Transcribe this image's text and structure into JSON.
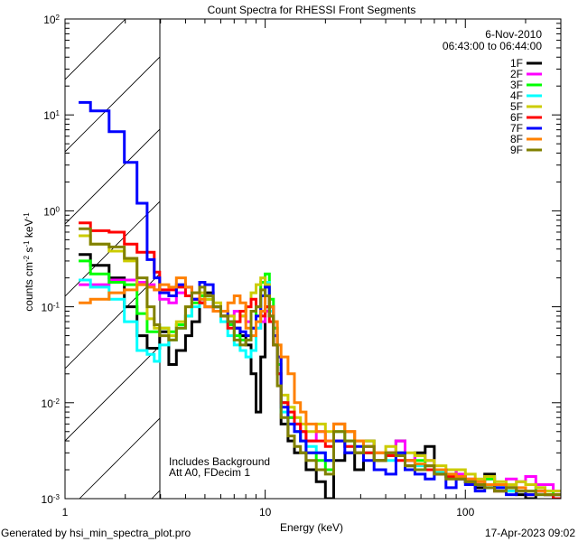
{
  "chart_data": {
    "type": "line",
    "title": "Count Spectra for RHESSI Front Segments",
    "xlabel": "Energy (keV)",
    "ylabel": "counts cm-2 s-1 keV-1",
    "xscale": "log",
    "yscale": "log",
    "xlim": [
      1,
      300
    ],
    "ylim": [
      0.001,
      100
    ],
    "x_tick_labels": [
      "1",
      "10",
      "100"
    ],
    "x_ticks": [
      1,
      10,
      100
    ],
    "y_ticks": [
      2,
      1,
      0,
      -1,
      -2,
      -3
    ],
    "grid": false,
    "legend_position": "top-right",
    "date_label": "6-Nov-2010",
    "time_label": "06:43:00 to 06:44:00",
    "annotations": [
      "Includes Background",
      "Att A0, FDecim 1"
    ],
    "hatched_region_keV": [
      1,
      3
    ],
    "footer_left": "Generated by hsi_min_spectra_plot.pro",
    "footer_right": "17-Apr-2023 09:02",
    "energy_bin_edges": [
      1.17,
      1.34,
      1.66,
      1.98,
      2.29,
      2.57,
      2.79,
      2.97,
      3.3,
      3.6,
      4.0,
      4.3,
      4.7,
      5.0,
      5.5,
      6.0,
      6.5,
      7.0,
      7.5,
      8.0,
      8.5,
      9.0,
      9.5,
      10,
      10.5,
      11,
      11.5,
      12,
      13,
      14,
      15,
      16,
      18,
      20,
      22,
      25,
      28,
      31,
      35,
      40,
      45,
      50,
      56,
      63,
      70,
      80,
      90,
      100,
      112,
      125,
      140,
      160,
      180,
      200,
      225,
      250,
      275,
      300
    ],
    "series": [
      {
        "name": "1F",
        "color": "#000000",
        "values": [
          0.35,
          0.27,
          0.2,
          0.1,
          0.05,
          0.037,
          0.037,
          0.055,
          0.025,
          0.035,
          0.05,
          0.07,
          0.11,
          0.14,
          0.1,
          0.08,
          0.07,
          0.06,
          0.05,
          0.04,
          0.02,
          0.008,
          0.03,
          0.1,
          0.08,
          0.04,
          0.02,
          0.006,
          0.004,
          0.003,
          0.003,
          0.002,
          0.0015,
          0.001,
          0.0025,
          0.003,
          0.002,
          0.004,
          0.0025,
          0.003,
          0.004,
          0.0025,
          0.003,
          0.0035,
          0.0018,
          0.002,
          0.0017,
          0.0015,
          0.0013,
          0.0018,
          0.0012,
          0.0012,
          0.0011,
          0.001,
          0.0012,
          0.0011,
          0.001
        ]
      },
      {
        "name": "2F",
        "color": "#ff00ff",
        "values": [
          0.17,
          0.17,
          0.19,
          0.19,
          0.18,
          0.17,
          0.15,
          0.12,
          0.11,
          0.14,
          0.13,
          0.12,
          0.13,
          0.1,
          0.09,
          0.08,
          0.08,
          0.09,
          0.08,
          0.07,
          0.06,
          0.06,
          0.07,
          0.09,
          0.1,
          0.06,
          0.03,
          0.01,
          0.007,
          0.006,
          0.005,
          0.004,
          0.005,
          0.004,
          0.006,
          0.005,
          0.004,
          0.0035,
          0.003,
          0.003,
          0.004,
          0.0025,
          0.0028,
          0.0025,
          0.002,
          0.002,
          0.0018,
          0.0016,
          0.0015,
          0.0016,
          0.0014,
          0.0016,
          0.0015,
          0.0017,
          0.0014,
          0.0014,
          0.0012
        ]
      },
      {
        "name": "3F",
        "color": "#00ff00",
        "values": [
          0.3,
          0.22,
          0.18,
          0.17,
          0.085,
          0.055,
          0.055,
          0.06,
          0.055,
          0.065,
          0.08,
          0.11,
          0.13,
          0.12,
          0.1,
          0.08,
          0.065,
          0.05,
          0.045,
          0.045,
          0.06,
          0.1,
          0.18,
          0.22,
          0.12,
          0.06,
          0.025,
          0.01,
          0.007,
          0.005,
          0.004,
          0.003,
          0.0025,
          0.002,
          0.005,
          0.004,
          0.003,
          0.003,
          0.0025,
          0.0028,
          0.003,
          0.0022,
          0.0025,
          0.0022,
          0.002,
          0.0018,
          0.0017,
          0.0015,
          0.0014,
          0.0016,
          0.0013,
          0.0013,
          0.0012,
          0.0012,
          0.0013,
          0.0012,
          0.0011
        ]
      },
      {
        "name": "4F",
        "color": "#00ffff",
        "values": [
          0.19,
          0.16,
          0.12,
          0.07,
          0.035,
          0.032,
          0.027,
          0.04,
          0.045,
          0.06,
          0.08,
          0.1,
          0.12,
          0.1,
          0.09,
          0.07,
          0.05,
          0.04,
          0.035,
          0.03,
          0.035,
          0.06,
          0.13,
          0.18,
          0.09,
          0.05,
          0.02,
          0.008,
          0.006,
          0.005,
          0.004,
          0.0035,
          0.003,
          0.0025,
          0.004,
          0.0035,
          0.003,
          0.003,
          0.0025,
          0.0025,
          0.003,
          0.0022,
          0.0022,
          0.002,
          0.0019,
          0.0017,
          0.0016,
          0.0015,
          0.0014,
          0.0013,
          0.0013,
          0.0012,
          0.0012,
          0.0012,
          0.0011,
          0.0011,
          0.0011
        ]
      },
      {
        "name": "5F",
        "color": "#cccc00",
        "values": [
          0.55,
          0.45,
          0.38,
          0.3,
          0.17,
          0.075,
          0.06,
          0.06,
          0.05,
          0.07,
          0.1,
          0.12,
          0.14,
          0.12,
          0.11,
          0.09,
          0.08,
          0.07,
          0.08,
          0.1,
          0.14,
          0.17,
          0.2,
          0.17,
          0.1,
          0.07,
          0.03,
          0.012,
          0.009,
          0.007,
          0.006,
          0.005,
          0.006,
          0.005,
          0.006,
          0.005,
          0.004,
          0.004,
          0.003,
          0.0035,
          0.003,
          0.003,
          0.0028,
          0.0025,
          0.0022,
          0.002,
          0.002,
          0.0018,
          0.0016,
          0.0017,
          0.0015,
          0.0014,
          0.0015,
          0.0014,
          0.0013,
          0.0012,
          0.0012
        ]
      },
      {
        "name": "6F",
        "color": "#ff0000",
        "values": [
          0.75,
          0.62,
          0.6,
          0.45,
          0.37,
          0.37,
          0.23,
          0.15,
          0.15,
          0.16,
          0.13,
          0.12,
          0.11,
          0.1,
          0.09,
          0.08,
          0.06,
          0.07,
          0.09,
          0.1,
          0.12,
          0.1,
          0.08,
          0.1,
          0.07,
          0.04,
          0.02,
          0.01,
          0.008,
          0.006,
          0.005,
          0.004,
          0.004,
          0.0035,
          0.004,
          0.0035,
          0.003,
          0.003,
          0.0025,
          0.0028,
          0.0025,
          0.0022,
          0.002,
          0.002,
          0.0018,
          0.0017,
          0.0016,
          0.0015,
          0.0014,
          0.0014,
          0.0012,
          0.0013,
          0.0012,
          0.0011,
          0.0012,
          0.0011,
          0.001
        ]
      },
      {
        "name": "7F",
        "color": "#0000ff",
        "values": [
          13.5,
          11,
          6.7,
          3.2,
          1.2,
          0.31,
          0.2,
          0.14,
          0.13,
          0.17,
          0.16,
          0.12,
          0.18,
          0.17,
          0.1,
          0.09,
          0.07,
          0.06,
          0.055,
          0.05,
          0.06,
          0.08,
          0.13,
          0.16,
          0.1,
          0.05,
          0.03,
          0.009,
          0.006,
          0.005,
          0.004,
          0.003,
          0.003,
          0.0025,
          0.004,
          0.003,
          0.0035,
          0.0025,
          0.002,
          0.0018,
          0.003,
          0.002,
          0.0018,
          0.0016,
          0.002,
          0.0013,
          0.0016,
          0.0014,
          0.0012,
          0.0014,
          0.0013,
          0.0011,
          0.0012,
          0.0011,
          0.0012,
          0.0011,
          0.0011
        ]
      },
      {
        "name": "8F",
        "color": "#ff8000",
        "values": [
          0.11,
          0.12,
          0.14,
          0.15,
          0.17,
          0.16,
          0.15,
          0.17,
          0.16,
          0.2,
          0.16,
          0.14,
          0.12,
          0.1,
          0.09,
          0.09,
          0.11,
          0.13,
          0.11,
          0.06,
          0.05,
          0.07,
          0.09,
          0.13,
          0.1,
          0.07,
          0.04,
          0.03,
          0.02,
          0.01,
          0.008,
          0.006,
          0.005,
          0.004,
          0.006,
          0.005,
          0.004,
          0.0035,
          0.003,
          0.003,
          0.0028,
          0.0025,
          0.0023,
          0.0022,
          0.002,
          0.0018,
          0.0017,
          0.0016,
          0.0015,
          0.0014,
          0.0014,
          0.0013,
          0.0013,
          0.0012,
          0.0012,
          0.0011,
          0.0011
        ]
      },
      {
        "name": "9F",
        "color": "#808000",
        "values": [
          0.65,
          0.45,
          0.42,
          0.32,
          0.2,
          0.1,
          0.065,
          0.05,
          0.045,
          0.06,
          0.1,
          0.14,
          0.16,
          0.13,
          0.1,
          0.08,
          0.07,
          0.045,
          0.04,
          0.045,
          0.09,
          0.1,
          0.15,
          0.13,
          0.08,
          0.04,
          0.015,
          0.007,
          0.0045,
          0.0035,
          0.003,
          0.0025,
          0.002,
          0.0018,
          0.005,
          0.004,
          0.003,
          0.0035,
          0.0025,
          0.003,
          0.0028,
          0.0022,
          0.002,
          0.0022,
          0.0018,
          0.0016,
          0.0016,
          0.0015,
          0.0014,
          0.0013,
          0.0012,
          0.0013,
          0.0012,
          0.0012,
          0.0011,
          0.0011,
          0.0011
        ]
      }
    ]
  }
}
